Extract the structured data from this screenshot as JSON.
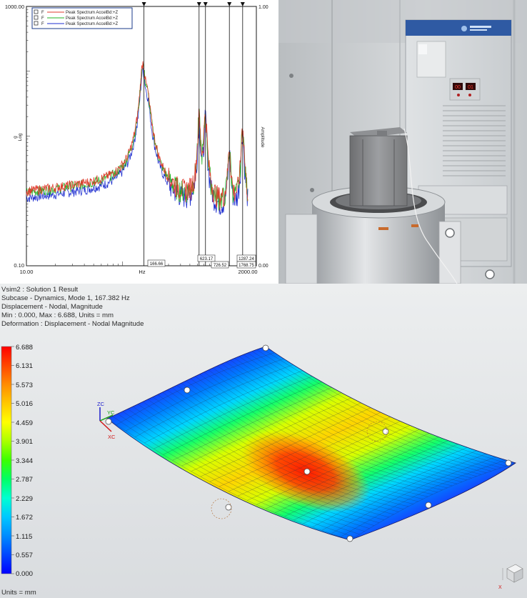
{
  "spectrum": {
    "y_top": "1000.00",
    "y_bottom": "0.10",
    "x_left": "10.00",
    "x_right": "2000.00",
    "x_unit": "Hz",
    "y_axis_label_1": "g",
    "y_axis_label_2": "Log",
    "right_top": "1.00",
    "right_bottom": "0.00",
    "right_axis_label": "Amplitude",
    "legend": [
      {
        "flag": "F",
        "name": "Peak Spectrum AccelBd:+Z",
        "color": "#e03a2c"
      },
      {
        "flag": "F",
        "name": "Peak Spectrum AccelBd:+Z",
        "color": "#22b322"
      },
      {
        "flag": "F",
        "name": "Peak Spectrum AccelBd:+Z",
        "color": "#1f2fd0"
      }
    ],
    "markers": [
      "166.66",
      "623.17",
      "726.52",
      "1287.24",
      "1768.75"
    ]
  },
  "fem": {
    "header_lines": [
      "Vsim2 : Solution 1 Result",
      "Subcase - Dynamics, Mode 1, 167.382 Hz",
      "Displacement - Nodal, Magnitude",
      "Min : 0.000, Max : 6.688, Units = mm",
      "Deformation : Displacement - Nodal Magnitude"
    ],
    "colorbar_labels": [
      "6.688",
      "6.131",
      "5.573",
      "5.016",
      "4.459",
      "3.901",
      "3.344",
      "2.787",
      "2.229",
      "1.672",
      "1.115",
      "0.557",
      "0.000"
    ],
    "units": "Units = mm",
    "triad": {
      "zc": "ZC",
      "yc": "YC",
      "xc": "XC",
      "x": "X"
    }
  },
  "colors": {
    "plot_frame": "#1a1a1a",
    "blue": "#1f2fd0",
    "green": "#22b322",
    "red": "#e03a2c"
  }
}
